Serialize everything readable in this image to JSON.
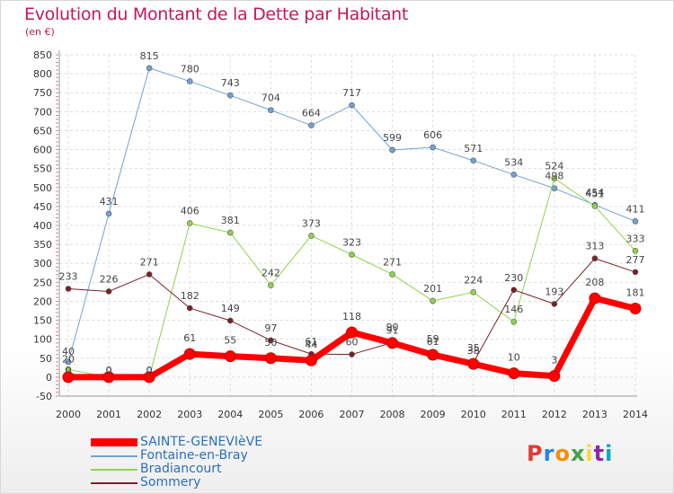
{
  "title": "Evolution du Montant de la Dette par Habitant",
  "unit": "(en €)",
  "logo": {
    "text": "Proxiti",
    "colors": [
      "#e53935",
      "#1e88e5",
      "#fb8c00",
      "#43a047",
      "#fdd835",
      "#8e24aa",
      "#00acc1"
    ]
  },
  "chart_data": {
    "type": "line",
    "x": [
      "2000",
      "2001",
      "2002",
      "2003",
      "2004",
      "2005",
      "2006",
      "2007",
      "2008",
      "2009",
      "2010",
      "2011",
      "2012",
      "2013",
      "2014"
    ],
    "ylim": [
      -50,
      850
    ],
    "yticks": [
      -50,
      0,
      50,
      100,
      150,
      200,
      250,
      300,
      350,
      400,
      450,
      500,
      550,
      600,
      650,
      700,
      750,
      800,
      850
    ],
    "grid": true,
    "legend_position": "bottom-left",
    "series": [
      {
        "name": "SAINTE-GENEVIèVE",
        "color": "#ff0000",
        "width": 7,
        "values": [
          0,
          0,
          0,
          61,
          55,
          50,
          44,
          118,
          90,
          59,
          35,
          10,
          3,
          208,
          181
        ],
        "labels": [
          "0",
          "0",
          "0",
          "61",
          "55",
          "50",
          "44",
          "118",
          "90",
          "59",
          "35",
          "10",
          "3",
          "208",
          "181"
        ],
        "label_dy": [
          -4,
          -4,
          -4,
          -14,
          -14,
          -14,
          -14,
          -14,
          -14,
          -14,
          -14,
          -14,
          -14,
          -14,
          -14
        ]
      },
      {
        "name": "Fontaine-en-Bray",
        "color": "#6fa3d6",
        "width": 1,
        "values": [
          40,
          431,
          815,
          780,
          743,
          704,
          664,
          717,
          599,
          606,
          571,
          534,
          498,
          454,
          411
        ],
        "labels": [
          "40",
          "431",
          "815",
          "780",
          "743",
          "704",
          "664",
          "717",
          "599",
          "606",
          "571",
          "534",
          "498",
          "454",
          "411"
        ],
        "label_dy": [
          -8,
          -10,
          -10,
          -10,
          -10,
          -10,
          -10,
          -10,
          -10,
          -10,
          -10,
          -10,
          -10,
          -10,
          -10
        ]
      },
      {
        "name": "Bradiancourt",
        "color": "#8fd44a",
        "width": 1,
        "values": [
          20,
          0,
          0,
          406,
          381,
          242,
          373,
          323,
          271,
          201,
          224,
          146,
          524,
          451,
          333
        ],
        "labels": [
          "20",
          "0",
          "0",
          "406",
          "381",
          "242",
          "373",
          "323",
          "271",
          "201",
          "224",
          "146",
          "524",
          "451",
          "333"
        ],
        "label_dy": [
          -8,
          -4,
          -4,
          -10,
          -10,
          -10,
          -10,
          -10,
          -10,
          -10,
          -10,
          -10,
          -10,
          -10,
          -10
        ]
      },
      {
        "name": "Sommery",
        "color": "#7a2028",
        "width": 1,
        "values": [
          233,
          226,
          271,
          182,
          149,
          97,
          61,
          60,
          91,
          61,
          38,
          230,
          193,
          313,
          277
        ],
        "labels": [
          "233",
          "226",
          "271",
          "182",
          "149",
          "97",
          "61",
          "60",
          "91",
          "61",
          "38",
          "230",
          "193",
          "313",
          "277"
        ],
        "label_dy": [
          -10,
          -10,
          -10,
          -10,
          -10,
          -10,
          -10,
          -10,
          -10,
          -10,
          -10,
          -10,
          -10,
          -10,
          -10
        ]
      }
    ]
  }
}
